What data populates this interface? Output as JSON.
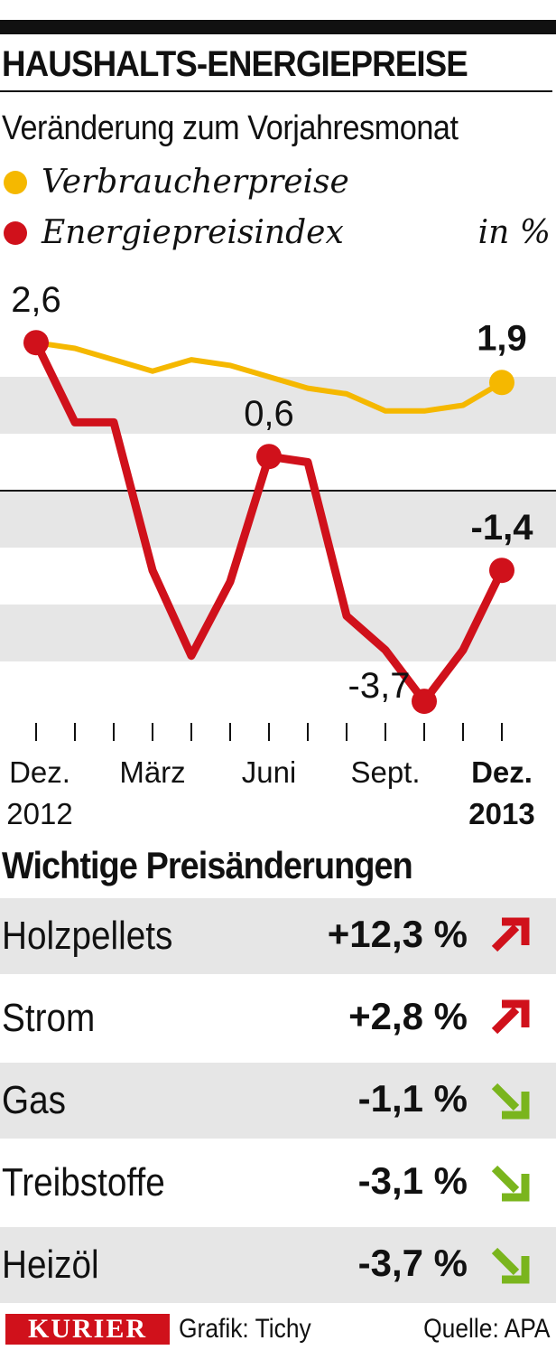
{
  "header": {
    "title": "HAUSHALTS-ENERGIEPREISE",
    "subtitle": "Veränderung zum Vorjahresmonat",
    "unit": "in %"
  },
  "colors": {
    "verbraucherpreise": "#f5b800",
    "energiepreisindex": "#d0111b",
    "arrow_up": "#d0111b",
    "arrow_down": "#7ab51d",
    "band": "#e6e6e6"
  },
  "chart_data": {
    "type": "line",
    "title": "HAUSHALTS-ENERGIEPREISE",
    "subtitle": "Veränderung zum Vorjahresmonat",
    "ylabel": "in %",
    "x": [
      "2012-12",
      "2013-01",
      "2013-02",
      "2013-03",
      "2013-04",
      "2013-05",
      "2013-06",
      "2013-07",
      "2013-08",
      "2013-09",
      "2013-10",
      "2013-11",
      "2013-12"
    ],
    "ylim": [
      -3.9,
      3.0
    ],
    "grid": false,
    "series": [
      {
        "name": "Verbraucherpreise",
        "color": "#f5b800",
        "values": [
          2.6,
          2.5,
          2.3,
          2.1,
          2.3,
          2.2,
          2.0,
          1.8,
          1.7,
          1.4,
          1.4,
          1.5,
          1.9
        ]
      },
      {
        "name": "Energiepreisindex",
        "color": "#d0111b",
        "values": [
          2.6,
          1.2,
          1.2,
          -1.4,
          -2.9,
          -1.6,
          0.6,
          0.5,
          -2.2,
          -2.8,
          -3.7,
          -2.8,
          -1.4
        ]
      }
    ],
    "point_labels": [
      {
        "series": 0,
        "index": 12,
        "text": "1,9",
        "bold": true
      },
      {
        "series": 1,
        "index": 0,
        "text": "2,6",
        "bold": false
      },
      {
        "series": 1,
        "index": 6,
        "text": "0,6",
        "bold": false
      },
      {
        "series": 1,
        "index": 10,
        "text": "-3,7",
        "bold": false
      },
      {
        "series": 1,
        "index": 12,
        "text": "-1,4",
        "bold": true
      }
    ],
    "x_tick_labels": [
      {
        "index": 0,
        "line1": "Dez.",
        "line2": "2012",
        "bold": false
      },
      {
        "index": 3,
        "line1": "März",
        "line2": "",
        "bold": false
      },
      {
        "index": 6,
        "line1": "Juni",
        "line2": "",
        "bold": false
      },
      {
        "index": 9,
        "line1": "Sept.",
        "line2": "",
        "bold": false
      },
      {
        "index": 12,
        "line1": "Dez.",
        "line2": "2013",
        "bold": true
      }
    ]
  },
  "price_changes": {
    "title": "Wichtige Preisänderungen",
    "items": [
      {
        "name": "Holzpellets",
        "value": "+12,3 %",
        "direction": "up"
      },
      {
        "name": "Strom",
        "value": "+2,8 %",
        "direction": "up"
      },
      {
        "name": "Gas",
        "value": "-1,1 %",
        "direction": "down"
      },
      {
        "name": "Treibstoffe",
        "value": "-3,1 %",
        "direction": "down"
      },
      {
        "name": "Heizöl",
        "value": "-3,7 %",
        "direction": "down"
      }
    ]
  },
  "footer": {
    "logo": "KURIER",
    "credit": "Grafik: Tichy",
    "source": "Quelle: APA"
  }
}
